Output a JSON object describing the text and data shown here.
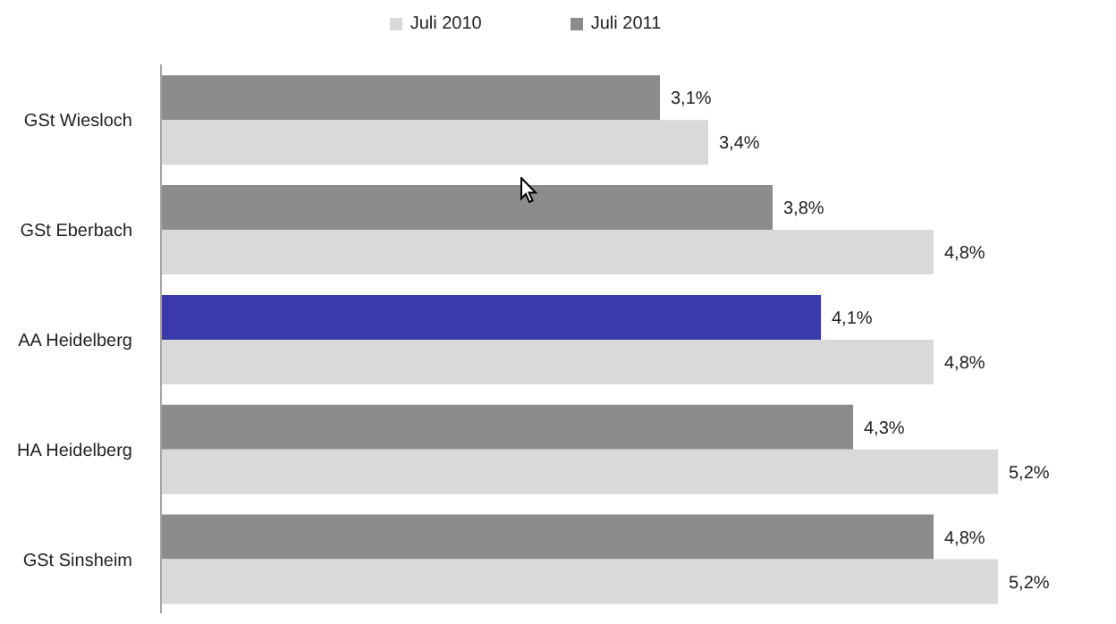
{
  "chart_data": {
    "type": "bar",
    "orientation": "horizontal",
    "categories": [
      "GSt Wiesloch",
      "GSt Eberbach",
      "AA Heidelberg",
      "HA Heidelberg",
      "GSt Sinsheim"
    ],
    "series": [
      {
        "name": "Juli 2011",
        "color": "#8c8c8c",
        "colors": [
          "#8c8c8c",
          "#8c8c8c",
          "#3a3aaa",
          "#8c8c8c",
          "#8c8c8c"
        ],
        "values": [
          3.1,
          3.8,
          4.1,
          4.3,
          4.8
        ],
        "value_labels": [
          "3,1%",
          "3,8%",
          "4,1%",
          "4,3%",
          "4,8%"
        ]
      },
      {
        "name": "Juli 2010",
        "color": "#d9d9d9",
        "values": [
          3.4,
          4.8,
          4.8,
          5.2,
          5.2
        ],
        "value_labels": [
          "3,4%",
          "4,8%",
          "4,8%",
          "5,2%",
          "5,2%"
        ]
      }
    ],
    "legend": "top"
  }
}
